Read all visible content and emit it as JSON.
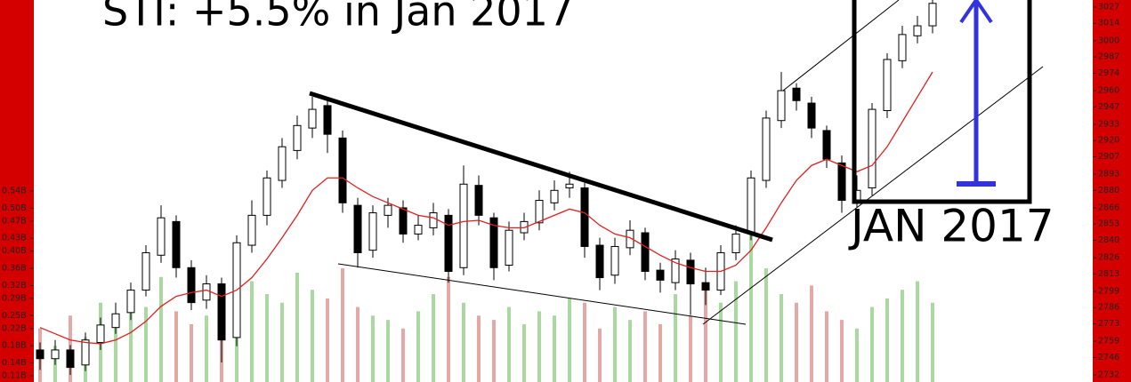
{
  "chart_data": {
    "type": "candlestick",
    "title": "STI: +5.5% in Jan 2017",
    "annotation": "JAN 2017",
    "up_color": "#ffffff",
    "down_color": "#000000",
    "ma_color": "#e02020",
    "volume_up_color": "#a9d9a0",
    "volume_down_color": "#e6a8a4",
    "open": [
      2752,
      2745,
      2752,
      2740,
      2758,
      2770,
      2782,
      2800,
      2828,
      2855,
      2818,
      2792,
      2805,
      2762,
      2836,
      2860,
      2888,
      2912,
      2930,
      2948,
      2922,
      2868,
      2832,
      2860,
      2866,
      2845,
      2850,
      2860,
      2818,
      2884,
      2858,
      2820,
      2846,
      2854,
      2870,
      2882,
      2882,
      2836,
      2812,
      2834,
      2846,
      2816,
      2806,
      2824,
      2806,
      2800,
      2830,
      2846,
      2888,
      2936,
      2962,
      2950,
      2928,
      2902,
      2870,
      2882,
      2944,
      2984,
      3004,
      3012
    ],
    "high": [
      2758,
      2760,
      2756,
      2766,
      2778,
      2790,
      2806,
      2836,
      2868,
      2860,
      2824,
      2812,
      2810,
      2844,
      2872,
      2896,
      2922,
      2940,
      2955,
      2952,
      2928,
      2874,
      2868,
      2874,
      2872,
      2860,
      2870,
      2865,
      2900,
      2892,
      2862,
      2855,
      2862,
      2880,
      2888,
      2895,
      2886,
      2842,
      2842,
      2856,
      2850,
      2822,
      2832,
      2830,
      2818,
      2836,
      2852,
      2896,
      2944,
      2975,
      2966,
      2955,
      2932,
      2908,
      2892,
      2950,
      2990,
      3012,
      3020,
      3036
    ],
    "low": [
      2736,
      2740,
      2732,
      2735,
      2752,
      2765,
      2776,
      2795,
      2822,
      2810,
      2784,
      2785,
      2742,
      2755,
      2830,
      2852,
      2882,
      2905,
      2922,
      2910,
      2862,
      2818,
      2826,
      2850,
      2838,
      2840,
      2844,
      2806,
      2812,
      2852,
      2808,
      2815,
      2840,
      2848,
      2864,
      2874,
      2826,
      2800,
      2805,
      2828,
      2808,
      2798,
      2800,
      2780,
      2788,
      2796,
      2824,
      2840,
      2882,
      2930,
      2944,
      2922,
      2898,
      2862,
      2866,
      2876,
      2938,
      2978,
      2998,
      3006
    ],
    "close": [
      2745,
      2752,
      2738,
      2760,
      2772,
      2781,
      2800,
      2830,
      2858,
      2818,
      2790,
      2805,
      2760,
      2838,
      2860,
      2890,
      2915,
      2932,
      2945,
      2925,
      2870,
      2830,
      2862,
      2868,
      2845,
      2852,
      2862,
      2815,
      2885,
      2860,
      2818,
      2848,
      2855,
      2872,
      2880,
      2885,
      2835,
      2810,
      2835,
      2848,
      2815,
      2808,
      2825,
      2805,
      2800,
      2830,
      2845,
      2890,
      2938,
      2960,
      2952,
      2930,
      2905,
      2872,
      2880,
      2945,
      2985,
      3005,
      3012,
      3030
    ],
    "ma": [
      2770,
      2765,
      2760,
      2758,
      2757,
      2760,
      2766,
      2775,
      2787,
      2795,
      2798,
      2800,
      2795,
      2800,
      2810,
      2825,
      2842,
      2860,
      2880,
      2890,
      2890,
      2882,
      2875,
      2870,
      2865,
      2860,
      2858,
      2852,
      2855,
      2856,
      2852,
      2850,
      2850,
      2855,
      2860,
      2865,
      2862,
      2852,
      2845,
      2842,
      2835,
      2828,
      2822,
      2818,
      2815,
      2815,
      2820,
      2832,
      2850,
      2870,
      2888,
      2900,
      2905,
      2900,
      2895,
      2900,
      2915,
      2935,
      2955,
      2975
    ],
    "volume": [
      0.22,
      0.18,
      0.25,
      0.2,
      0.28,
      0.24,
      0.3,
      0.27,
      0.34,
      0.26,
      0.23,
      0.25,
      0.21,
      0.4,
      0.33,
      0.3,
      0.28,
      0.35,
      0.31,
      0.29,
      0.36,
      0.27,
      0.25,
      0.24,
      0.22,
      0.26,
      0.3,
      0.34,
      0.28,
      0.25,
      0.24,
      0.27,
      0.23,
      0.26,
      0.25,
      0.29,
      0.28,
      0.22,
      0.27,
      0.24,
      0.26,
      0.23,
      0.3,
      0.25,
      0.31,
      0.28,
      0.33,
      0.5,
      0.36,
      0.3,
      0.28,
      0.32,
      0.26,
      0.24,
      0.22,
      0.27,
      0.29,
      0.31,
      0.33,
      0.28
    ],
    "ylim": [
      2726.3,
      3032.7
    ],
    "yticks": [
      3027,
      3014,
      3000,
      2987,
      2974,
      2960,
      2947,
      2933,
      2920,
      2907,
      2893,
      2880,
      2866,
      2853,
      2840,
      2826,
      2813,
      2799,
      2786,
      2773,
      2759,
      2746,
      2732
    ],
    "y2lim": [
      0.0955,
      0.9845
    ],
    "y2ticks": [
      {
        "value": 0.54,
        "label": "0.54B"
      },
      {
        "value": 0.5,
        "label": "0.50B"
      },
      {
        "value": 0.47,
        "label": "0.47B"
      },
      {
        "value": 0.43,
        "label": "0.43B"
      },
      {
        "value": 0.4,
        "label": "0.40B"
      },
      {
        "value": 0.36,
        "label": "0.36B"
      },
      {
        "value": 0.32,
        "label": "0.32B"
      },
      {
        "value": 0.29,
        "label": "0.29B"
      },
      {
        "value": 0.25,
        "label": "0.25B"
      },
      {
        "value": 0.22,
        "label": "0.22B"
      },
      {
        "value": 0.18,
        "label": "0.18B"
      },
      {
        "value": 0.14,
        "label": "0.14B"
      },
      {
        "value": 0.11,
        "label": "0.11B"
      }
    ]
  }
}
